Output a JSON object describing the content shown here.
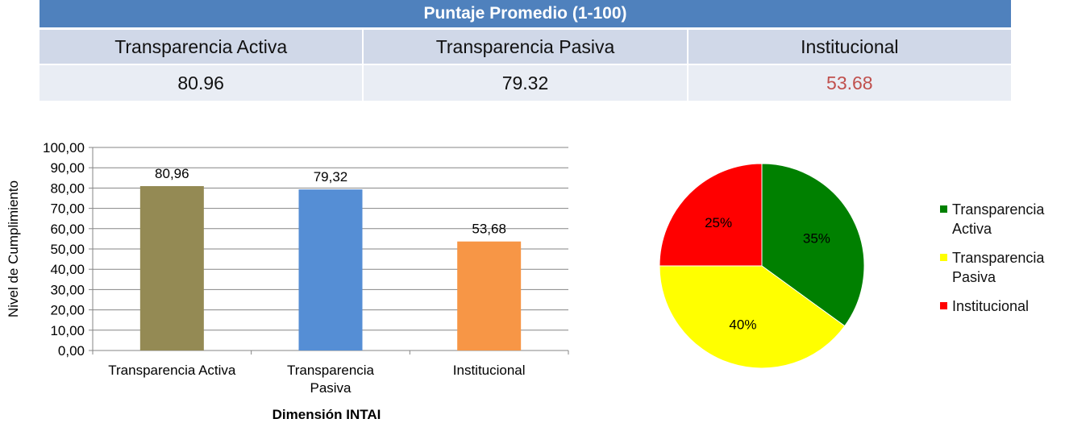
{
  "table": {
    "title": "Puntaje Promedio (1-100)",
    "headers": [
      "Transparencia Activa",
      "Transparencia Pasiva",
      "Institucional"
    ],
    "values": [
      "80.96",
      "79.32",
      "53.68"
    ]
  },
  "colors": {
    "table_header": "#4f81bd",
    "alert_value": "#c0504d"
  },
  "chart_data": [
    {
      "type": "bar",
      "categories": [
        "Transparencia Activa",
        "Transparencia Pasiva",
        "Institucional"
      ],
      "values": [
        80.96,
        79.32,
        53.68
      ],
      "data_labels": [
        "80,96",
        "79,32",
        "53,68"
      ],
      "colors": [
        "#948a54",
        "#558ed5",
        "#f79646"
      ],
      "xlabel": "Dimensión INTAI",
      "ylabel": "Nivel de Cumplimiento",
      "ylim": [
        0,
        100
      ],
      "y_ticks": [
        "0,00",
        "10,00",
        "20,00",
        "30,00",
        "40,00",
        "50,00",
        "60,00",
        "70,00",
        "80,00",
        "90,00",
        "100,00"
      ],
      "grid": true
    },
    {
      "type": "pie",
      "labels": [
        "Transparencia Activa",
        "Transparencia Pasiva",
        "Institucional"
      ],
      "values": [
        35,
        40,
        25
      ],
      "data_labels": [
        "35%",
        "40%",
        "25%"
      ],
      "colors": [
        "#008000",
        "#ffff00",
        "#ff0000"
      ],
      "legend_position": "right"
    }
  ]
}
